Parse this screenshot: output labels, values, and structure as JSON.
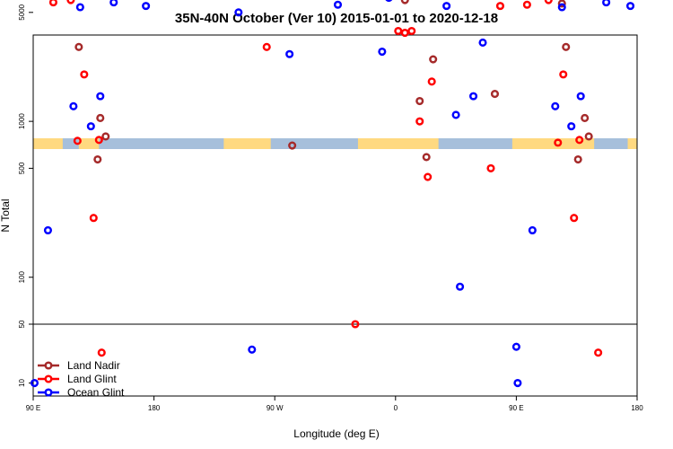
{
  "chart_data": {
    "type": "scatter",
    "title": "35N-40N October (Ver 10)   2015-01-01 to 2020-12-18",
    "xlabel": "Longitude (deg E)",
    "ylabel": "N Total",
    "xlim": [
      90,
      540
    ],
    "x_ticks": [
      {
        "value": 90,
        "label": "90 E"
      },
      {
        "value": 180,
        "label": "180"
      },
      {
        "value": 270,
        "label": "90 W"
      },
      {
        "value": 360,
        "label": "0"
      },
      {
        "value": 450,
        "label": "90 E"
      },
      {
        "value": 540,
        "label": "180"
      }
    ],
    "y_ticks": [
      {
        "value": 10,
        "label": "10"
      },
      {
        "value": 50,
        "label": "50"
      },
      {
        "value": 100,
        "label": "100"
      },
      {
        "value": 500,
        "label": "500"
      },
      {
        "value": 1000,
        "label": "1000"
      },
      {
        "value": 5000,
        "label": "5000"
      },
      {
        "value": 10000,
        "label": "10000"
      }
    ],
    "y_scale": "piecewise-log: lower panel 7-50, upper panel 50-30000",
    "panel_break": 50,
    "landmask_band": {
      "colors": {
        "land": "#FFD980",
        "ocean": "#A6BFDB"
      }
    },
    "legend": [
      {
        "name": "Land Nadir",
        "color": "#A52A2A"
      },
      {
        "name": "Land Glint",
        "color": "#FF0000"
      },
      {
        "name": "Ocean Glint",
        "color": "#0000FF"
      }
    ],
    "series": [
      {
        "name": "Land Nadir",
        "color": "#A52A2A",
        "points": [
          [
            93,
            12000
          ],
          [
            99,
            9500
          ],
          [
            104,
            18500
          ],
          [
            108,
            16500
          ],
          [
            113,
            9800
          ],
          [
            118,
            9700
          ],
          [
            124,
            3000
          ],
          [
            132,
            7000
          ],
          [
            138,
            570
          ],
          [
            140,
            1050
          ],
          [
            144,
            800
          ],
          [
            244,
            14000
          ],
          [
            248,
            22000
          ],
          [
            253,
            26000
          ],
          [
            258,
            21000
          ],
          [
            263,
            11500
          ],
          [
            268,
            10000
          ],
          [
            270,
            9000
          ],
          [
            279,
            10800
          ],
          [
            283,
            700
          ],
          [
            360,
            10800
          ],
          [
            363,
            8200
          ],
          [
            367,
            6000
          ],
          [
            378,
            1350
          ],
          [
            383,
            590
          ],
          [
            388,
            2500
          ],
          [
            392,
            7000
          ],
          [
            397,
            27000
          ],
          [
            402,
            26000
          ],
          [
            410,
            10000
          ],
          [
            417,
            12500
          ],
          [
            420,
            32000
          ],
          [
            424,
            27500
          ],
          [
            426,
            12000
          ],
          [
            434,
            1500
          ],
          [
            442,
            6900
          ],
          [
            445,
            9000
          ],
          [
            449,
            10000
          ],
          [
            454,
            10500
          ],
          [
            458,
            11800
          ],
          [
            463,
            10800
          ],
          [
            466,
            9500
          ],
          [
            469,
            19000
          ],
          [
            474,
            16500
          ],
          [
            477,
            11000
          ],
          [
            479,
            9600
          ],
          [
            484,
            5700
          ],
          [
            487,
            3000
          ],
          [
            496,
            570
          ],
          [
            501,
            1050
          ],
          [
            504,
            800
          ]
        ]
      },
      {
        "name": "Land Glint",
        "color": "#FF0000",
        "points": [
          [
            92,
            13000
          ],
          [
            96,
            11000
          ],
          [
            105,
            5800
          ],
          [
            109,
            10500
          ],
          [
            114,
            7500
          ],
          [
            118,
            6000
          ],
          [
            123,
            750
          ],
          [
            128,
            2000
          ],
          [
            135,
            240
          ],
          [
            139,
            760
          ],
          [
            141,
            23
          ],
          [
            216,
            7000
          ],
          [
            239,
            13500
          ],
          [
            245,
            24000
          ],
          [
            250,
            16000
          ],
          [
            255,
            20000
          ],
          [
            260,
            19000
          ],
          [
            265,
            13000
          ],
          [
            271,
            9600
          ],
          [
            274,
            8500
          ],
          [
            277,
            8000
          ],
          [
            283,
            7500
          ],
          [
            264,
            3000
          ],
          [
            330,
            50
          ],
          [
            362,
            3800
          ],
          [
            367,
            3700
          ],
          [
            372,
            3800
          ],
          [
            384,
            440
          ],
          [
            378,
            1000
          ],
          [
            387,
            1800
          ],
          [
            393,
            7600
          ],
          [
            398,
            10800
          ],
          [
            403,
            12000
          ],
          [
            409,
            10200
          ],
          [
            415,
            6900
          ],
          [
            423,
            14000
          ],
          [
            426,
            16000
          ],
          [
            431,
            500
          ],
          [
            438,
            5500
          ],
          [
            444,
            7300
          ],
          [
            452,
            10400
          ],
          [
            458,
            5600
          ],
          [
            465,
            7600
          ],
          [
            474,
            6000
          ],
          [
            481,
            730
          ],
          [
            485,
            2000
          ],
          [
            493,
            240
          ],
          [
            497,
            760
          ],
          [
            511,
            23
          ]
        ]
      },
      {
        "name": "Ocean Glint",
        "color": "#0000FF",
        "points": [
          [
            91,
            10
          ],
          [
            101,
            200
          ],
          [
            120,
            1250
          ],
          [
            125,
            5400
          ],
          [
            133,
            930
          ],
          [
            136,
            11000
          ],
          [
            140,
            1450
          ],
          [
            145,
            7500
          ],
          [
            150,
            5800
          ],
          [
            155,
            12500
          ],
          [
            159,
            9400
          ],
          [
            166,
            10600
          ],
          [
            174,
            5500
          ],
          [
            180,
            9700
          ],
          [
            184,
            11500
          ],
          [
            190,
            11000
          ],
          [
            195,
            8800
          ],
          [
            200,
            9200
          ],
          [
            204,
            10800
          ],
          [
            209,
            9000
          ],
          [
            213,
            15200
          ],
          [
            217,
            12500
          ],
          [
            222,
            9000
          ],
          [
            227,
            9200
          ],
          [
            232,
            14000
          ],
          [
            238,
            16200
          ],
          [
            243,
            5000
          ],
          [
            253,
            25
          ],
          [
            281,
            2700
          ],
          [
            300,
            9100
          ],
          [
            304,
            7600
          ],
          [
            308,
            7500
          ],
          [
            313,
            9600
          ],
          [
            317,
            5600
          ],
          [
            322,
            8200
          ],
          [
            327,
            9500
          ],
          [
            332,
            16600
          ],
          [
            337,
            22800
          ],
          [
            342,
            14000
          ],
          [
            346,
            13200
          ],
          [
            350,
            2800
          ],
          [
            355,
            6200
          ],
          [
            360,
            7100
          ],
          [
            366,
            9300
          ],
          [
            372,
            7400
          ],
          [
            377,
            7100
          ],
          [
            382,
            12500
          ],
          [
            386,
            9700
          ],
          [
            393,
            9700
          ],
          [
            398,
            5500
          ],
          [
            405,
            1100
          ],
          [
            408,
            87
          ],
          [
            418,
            1450
          ],
          [
            425,
            3200
          ],
          [
            450,
            27
          ],
          [
            451,
            10
          ],
          [
            462,
            200
          ],
          [
            479,
            1250
          ],
          [
            484,
            5400
          ],
          [
            491,
            930
          ],
          [
            494,
            11000
          ],
          [
            498,
            1450
          ],
          [
            501,
            7500
          ],
          [
            511,
            7500
          ],
          [
            517,
            5800
          ],
          [
            521,
            12000
          ],
          [
            526,
            9300
          ],
          [
            530,
            10500
          ],
          [
            535,
            5500
          ],
          [
            539,
            9800
          ],
          [
            542,
            12000
          ]
        ]
      }
    ]
  }
}
